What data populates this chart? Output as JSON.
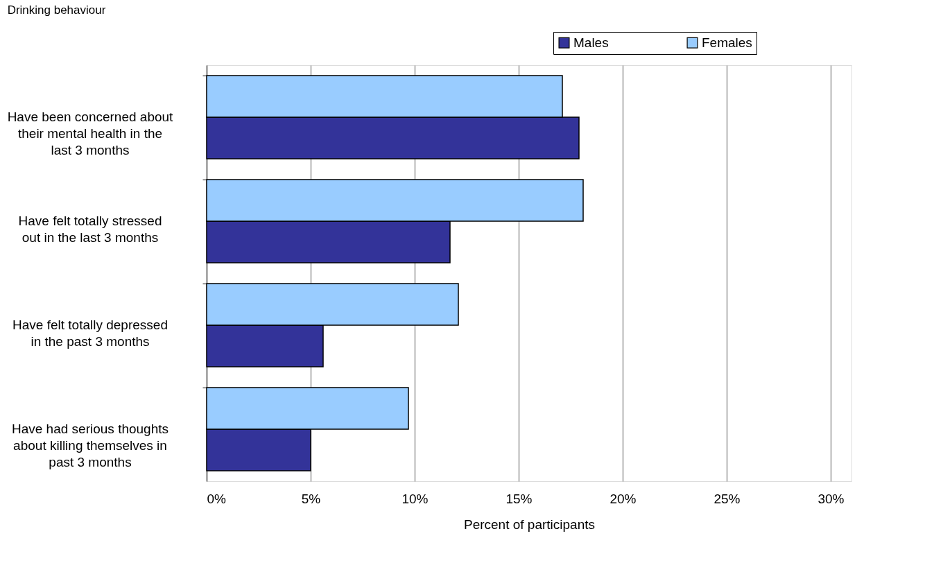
{
  "chart_data": {
    "type": "bar",
    "orientation": "horizontal",
    "title": "Drinking behaviour",
    "xlabel": "Percent of participants",
    "categories": [
      "Have been concerned about their mental health in the last 3 months",
      "Have felt totally stressed out in the last 3 months",
      "Have felt totally depressed in the past 3 months",
      "Have had serious thoughts about killing themselves in past 3 months"
    ],
    "series": [
      {
        "name": "Males",
        "color": "#333399",
        "values": [
          17.9,
          11.7,
          5.6,
          5.0
        ]
      },
      {
        "name": "Females",
        "color": "#99ccff",
        "values": [
          17.1,
          18.1,
          12.1,
          9.7
        ]
      }
    ],
    "xlim": [
      0,
      31
    ],
    "xticks": [
      {
        "value": 0,
        "label": "0%"
      },
      {
        "value": 5,
        "label": "5%"
      },
      {
        "value": 10,
        "label": "10%"
      },
      {
        "value": 15,
        "label": "15%"
      },
      {
        "value": 20,
        "label": "20%"
      },
      {
        "value": 25,
        "label": "25%"
      },
      {
        "value": 30,
        "label": "30%"
      }
    ],
    "grid": "x",
    "legend": "top right"
  }
}
